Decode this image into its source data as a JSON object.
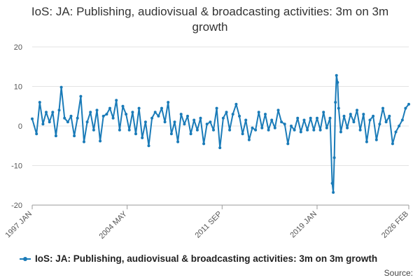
{
  "chart_data": {
    "type": "line",
    "title": "IoS: JA: Publishing, audiovisual & broadcasting activities: 3m on 3m growth",
    "xlabel": "",
    "ylabel": "",
    "ylim": [
      -20,
      20
    ],
    "yticks": [
      20,
      10,
      0,
      -10,
      -20
    ],
    "x_tick_labels": [
      "1997 JAN",
      "2004 MAY",
      "2011 SEP",
      "2019 JAN",
      "2026 FEB"
    ],
    "x_tick_dates": [
      "1997-01",
      "2004-05",
      "2011-09",
      "2019-01",
      "2026-02"
    ],
    "x_range": [
      "1997-01",
      "2026-02"
    ],
    "grid": "horizontal",
    "legend_position": "bottom",
    "series": [
      {
        "name": "IoS: JA: Publishing, audiovisual & broadcasting activities: 3m on 3m growth",
        "color": "#1a7bb8",
        "marker": "circle",
        "points": [
          [
            "1997-01",
            1.8
          ],
          [
            "1997-05",
            -2.0
          ],
          [
            "1997-08",
            6.0
          ],
          [
            "1997-11",
            0.5
          ],
          [
            "1998-02",
            3.5
          ],
          [
            "1998-05",
            1.0
          ],
          [
            "1998-08",
            3.5
          ],
          [
            "1998-11",
            -2.5
          ],
          [
            "1999-02",
            4.0
          ],
          [
            "1999-04",
            9.8
          ],
          [
            "1999-07",
            2.0
          ],
          [
            "1999-10",
            1.0
          ],
          [
            "2000-01",
            2.5
          ],
          [
            "2000-04",
            -2.5
          ],
          [
            "2000-07",
            2.0
          ],
          [
            "2000-10",
            7.5
          ],
          [
            "2001-01",
            -4.0
          ],
          [
            "2001-04",
            1.0
          ],
          [
            "2001-07",
            3.5
          ],
          [
            "2001-10",
            -1.0
          ],
          [
            "2002-01",
            4.0
          ],
          [
            "2002-04",
            -3.8
          ],
          [
            "2002-07",
            2.5
          ],
          [
            "2002-10",
            3.0
          ],
          [
            "2003-01",
            4.5
          ],
          [
            "2003-04",
            2.0
          ],
          [
            "2003-07",
            6.5
          ],
          [
            "2003-10",
            -1.0
          ],
          [
            "2004-01",
            5.0
          ],
          [
            "2004-04",
            3.0
          ],
          [
            "2004-07",
            -1.0
          ],
          [
            "2004-10",
            3.5
          ],
          [
            "2005-01",
            -2.0
          ],
          [
            "2005-04",
            4.5
          ],
          [
            "2005-07",
            -3.0
          ],
          [
            "2005-10",
            1.0
          ],
          [
            "2006-01",
            -5.0
          ],
          [
            "2006-04",
            2.0
          ],
          [
            "2006-07",
            3.5
          ],
          [
            "2006-10",
            2.5
          ],
          [
            "2007-01",
            4.5
          ],
          [
            "2007-04",
            1.0
          ],
          [
            "2007-07",
            6.0
          ],
          [
            "2007-10",
            -2.0
          ],
          [
            "2008-01",
            1.0
          ],
          [
            "2008-04",
            -4.0
          ],
          [
            "2008-07",
            3.0
          ],
          [
            "2008-10",
            0.5
          ],
          [
            "2009-01",
            2.5
          ],
          [
            "2009-04",
            -2.0
          ],
          [
            "2009-07",
            1.5
          ],
          [
            "2009-10",
            -1.0
          ],
          [
            "2010-01",
            2.0
          ],
          [
            "2010-04",
            -4.5
          ],
          [
            "2010-07",
            0.5
          ],
          [
            "2010-10",
            1.0
          ],
          [
            "2011-01",
            -1.0
          ],
          [
            "2011-04",
            4.5
          ],
          [
            "2011-07",
            -5.5
          ],
          [
            "2011-10",
            2.0
          ],
          [
            "2012-01",
            3.5
          ],
          [
            "2012-04",
            -1.0
          ],
          [
            "2012-07",
            3.0
          ],
          [
            "2012-10",
            5.5
          ],
          [
            "2013-01",
            2.5
          ],
          [
            "2013-04",
            -2.0
          ],
          [
            "2013-07",
            1.5
          ],
          [
            "2013-10",
            -3.5
          ],
          [
            "2014-01",
            -0.5
          ],
          [
            "2014-04",
            -1.0
          ],
          [
            "2014-07",
            3.5
          ],
          [
            "2014-10",
            -0.5
          ],
          [
            "2015-01",
            3.0
          ],
          [
            "2015-04",
            -1.0
          ],
          [
            "2015-07",
            1.5
          ],
          [
            "2015-10",
            -0.5
          ],
          [
            "2016-01",
            4.0
          ],
          [
            "2016-04",
            1.0
          ],
          [
            "2016-07",
            0.5
          ],
          [
            "2016-10",
            -4.5
          ],
          [
            "2017-01",
            0.0
          ],
          [
            "2017-04",
            -1.0
          ],
          [
            "2017-07",
            2.0
          ],
          [
            "2017-10",
            -1.5
          ],
          [
            "2018-01",
            1.5
          ],
          [
            "2018-04",
            -1.0
          ],
          [
            "2018-07",
            2.0
          ],
          [
            "2018-10",
            -1.0
          ],
          [
            "2019-01",
            2.0
          ],
          [
            "2019-04",
            -1.0
          ],
          [
            "2019-07",
            3.5
          ],
          [
            "2019-10",
            -0.5
          ],
          [
            "2020-01",
            2.0
          ],
          [
            "2020-03",
            -14.5
          ],
          [
            "2020-04",
            -16.8
          ],
          [
            "2020-05",
            -8.0
          ],
          [
            "2020-06",
            6.0
          ],
          [
            "2020-07",
            12.8
          ],
          [
            "2020-08",
            11.0
          ],
          [
            "2020-09",
            4.5
          ],
          [
            "2020-11",
            -1.5
          ],
          [
            "2021-02",
            2.5
          ],
          [
            "2021-05",
            -0.5
          ],
          [
            "2021-08",
            3.0
          ],
          [
            "2021-11",
            1.0
          ],
          [
            "2022-02",
            4.0
          ],
          [
            "2022-05",
            -1.0
          ],
          [
            "2022-08",
            3.0
          ],
          [
            "2022-11",
            -4.0
          ],
          [
            "2023-02",
            1.5
          ],
          [
            "2023-05",
            2.5
          ],
          [
            "2023-08",
            -3.5
          ],
          [
            "2023-11",
            0.5
          ],
          [
            "2024-02",
            4.5
          ],
          [
            "2024-05",
            1.0
          ],
          [
            "2024-08",
            2.5
          ],
          [
            "2024-11",
            -4.5
          ],
          [
            "2025-02",
            -1.5
          ],
          [
            "2025-05",
            0.0
          ],
          [
            "2025-08",
            1.5
          ],
          [
            "2025-11",
            4.5
          ],
          [
            "2026-02",
            5.5
          ]
        ]
      }
    ]
  },
  "legend": {
    "label": "IoS: JA: Publishing, audiovisual & broadcasting activities: 3m on 3m growth"
  },
  "source": {
    "label": "Source:"
  }
}
